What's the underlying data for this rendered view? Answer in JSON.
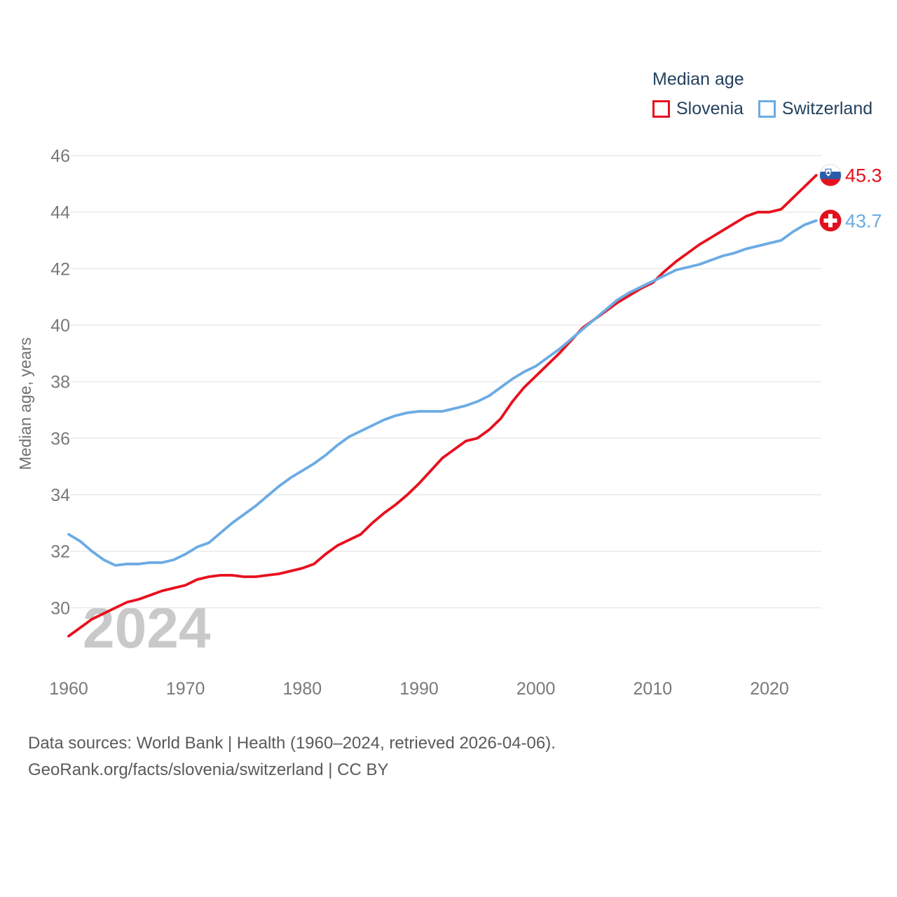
{
  "legend": {
    "title": "Median age",
    "series": [
      {
        "label": "Slovenia",
        "color": "#e8101e"
      },
      {
        "label": "Switzerland",
        "color": "#6babe4"
      }
    ]
  },
  "watermark": "2024",
  "end_labels": [
    {
      "series": "Slovenia",
      "value": "45.3"
    },
    {
      "series": "Switzerland",
      "value": "43.7"
    }
  ],
  "flags": {
    "slovenia": [
      "#ffffff",
      "#2a5bab",
      "#e8101e"
    ],
    "switzerland": [
      "#e30f1e",
      "#ffffff"
    ]
  },
  "footer": {
    "line1": "Data sources: World Bank | Health (1960–2024, retrieved 2026-04-06).",
    "line2": "GeoRank.org/facts/slovenia/switzerland | CC BY"
  },
  "chart_data": {
    "type": "line",
    "title": "Median age",
    "xlabel": "",
    "ylabel": "Median age, years",
    "ylim": [
      28.5,
      46
    ],
    "xlim": [
      1960,
      2024
    ],
    "grid": "horizontal",
    "legend_position": "top-right",
    "yticks": [
      46,
      44,
      42,
      40,
      38,
      36,
      34,
      32,
      30
    ],
    "xticks": [
      1960,
      1970,
      1980,
      1990,
      2000,
      2010,
      2020
    ],
    "x": [
      1960,
      1961,
      1962,
      1963,
      1964,
      1965,
      1966,
      1967,
      1968,
      1969,
      1970,
      1971,
      1972,
      1973,
      1974,
      1975,
      1976,
      1977,
      1978,
      1979,
      1980,
      1981,
      1982,
      1983,
      1984,
      1985,
      1986,
      1987,
      1988,
      1989,
      1990,
      1991,
      1992,
      1993,
      1994,
      1995,
      1996,
      1997,
      1998,
      1999,
      2000,
      2001,
      2002,
      2003,
      2004,
      2005,
      2006,
      2007,
      2008,
      2009,
      2010,
      2011,
      2012,
      2013,
      2014,
      2015,
      2016,
      2017,
      2018,
      2019,
      2020,
      2021,
      2022,
      2023,
      2024
    ],
    "series": [
      {
        "name": "Slovenia",
        "color": "#e8101e",
        "values": [
          29.0,
          29.3,
          29.6,
          29.8,
          30.0,
          30.2,
          30.3,
          30.45,
          30.6,
          30.7,
          30.8,
          31.0,
          31.1,
          31.15,
          31.15,
          31.1,
          31.1,
          31.15,
          31.2,
          31.3,
          31.4,
          31.55,
          31.9,
          32.2,
          32.4,
          32.6,
          33.0,
          33.35,
          33.65,
          34.0,
          34.4,
          34.85,
          35.3,
          35.6,
          35.9,
          36.0,
          36.3,
          36.7,
          37.3,
          37.8,
          38.2,
          38.6,
          39.0,
          39.45,
          39.9,
          40.2,
          40.5,
          40.8,
          41.05,
          41.3,
          41.5,
          41.9,
          42.25,
          42.55,
          42.85,
          43.1,
          43.35,
          43.6,
          43.85,
          44.0,
          44.0,
          44.1,
          44.5,
          44.9,
          45.3
        ]
      },
      {
        "name": "Switzerland",
        "color": "#6babe4",
        "values": [
          32.6,
          32.35,
          32.0,
          31.7,
          31.5,
          31.55,
          31.55,
          31.6,
          31.6,
          31.7,
          31.9,
          32.15,
          32.3,
          32.65,
          33.0,
          33.3,
          33.6,
          33.95,
          34.3,
          34.6,
          34.85,
          35.1,
          35.4,
          35.75,
          36.05,
          36.25,
          36.45,
          36.65,
          36.8,
          36.9,
          36.95,
          36.95,
          36.95,
          37.05,
          37.15,
          37.3,
          37.5,
          37.8,
          38.1,
          38.35,
          38.55,
          38.85,
          39.15,
          39.5,
          39.85,
          40.2,
          40.55,
          40.9,
          41.15,
          41.35,
          41.55,
          41.75,
          41.95,
          42.05,
          42.15,
          42.3,
          42.45,
          42.55,
          42.7,
          42.8,
          42.9,
          43.0,
          43.3,
          43.55,
          43.7
        ]
      }
    ]
  }
}
